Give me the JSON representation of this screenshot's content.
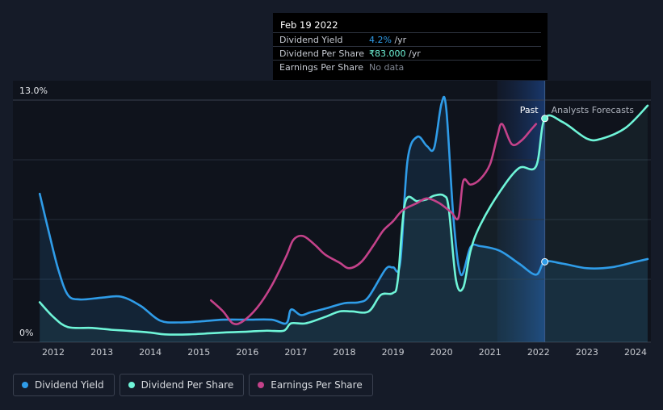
{
  "tooltip": {
    "date": "Feb 19 2022",
    "rows": [
      {
        "label": "Dividend Yield",
        "value": "4.2%",
        "unit": " /yr",
        "color": "#2f9ce8"
      },
      {
        "label": "Dividend Per Share",
        "value": "₹83.000",
        "unit": " /yr",
        "color": "#6ff5d8"
      },
      {
        "label": "Earnings Per Share",
        "value": "No data",
        "unit": "",
        "color": "#7f8591"
      }
    ]
  },
  "legend": [
    {
      "label": "Dividend Yield",
      "color": "#2f9ce8"
    },
    {
      "label": "Dividend Per Share",
      "color": "#6ff5d8"
    },
    {
      "label": "Earnings Per Share",
      "color": "#c4428a"
    }
  ],
  "chart_data": {
    "type": "line",
    "y_axis_labels": [
      "13.0%",
      "0%"
    ],
    "ylim": [
      0,
      13
    ],
    "xlim": [
      2011.7,
      2024.3
    ],
    "x_tick_labels": [
      "2012",
      "2013",
      "2014",
      "2015",
      "2016",
      "2017",
      "2018",
      "2019",
      "2020",
      "2021",
      "2022",
      "2023",
      "2024"
    ],
    "past_label": "Past",
    "forecast_label": "Analysts Forecasts",
    "past_end": 2022.13,
    "forecast_band_start": 2021.15,
    "series": [
      {
        "name": "Dividend Yield",
        "color": "#2f9ce8",
        "points": [
          [
            2011.72,
            7.9
          ],
          [
            2011.9,
            5.9
          ],
          [
            2012.1,
            3.8
          ],
          [
            2012.3,
            2.4
          ],
          [
            2012.55,
            2.15
          ],
          [
            2013.0,
            2.25
          ],
          [
            2013.4,
            2.3
          ],
          [
            2013.8,
            1.8
          ],
          [
            2014.2,
            1.0
          ],
          [
            2014.6,
            0.9
          ],
          [
            2015.0,
            0.95
          ],
          [
            2015.5,
            1.05
          ],
          [
            2016.0,
            1.05
          ],
          [
            2016.5,
            1.05
          ],
          [
            2016.8,
            0.85
          ],
          [
            2016.9,
            1.6
          ],
          [
            2017.1,
            1.3
          ],
          [
            2017.3,
            1.45
          ],
          [
            2017.6,
            1.65
          ],
          [
            2018.0,
            1.95
          ],
          [
            2018.3,
            2.0
          ],
          [
            2018.5,
            2.3
          ],
          [
            2018.85,
            3.8
          ],
          [
            2019.0,
            3.9
          ],
          [
            2019.15,
            4.15
          ],
          [
            2019.3,
            9.7
          ],
          [
            2019.5,
            11.0
          ],
          [
            2019.7,
            10.5
          ],
          [
            2019.85,
            10.4
          ],
          [
            2020.0,
            12.8
          ],
          [
            2020.1,
            12.5
          ],
          [
            2020.25,
            6.5
          ],
          [
            2020.4,
            3.5
          ],
          [
            2020.6,
            5.0
          ],
          [
            2020.8,
            5.05
          ],
          [
            2021.2,
            4.8
          ],
          [
            2021.6,
            4.1
          ],
          [
            2021.95,
            3.5
          ],
          [
            2022.13,
            4.2
          ],
          [
            2022.5,
            4.1
          ],
          [
            2023.0,
            3.85
          ],
          [
            2023.5,
            3.9
          ],
          [
            2024.0,
            4.2
          ],
          [
            2024.25,
            4.35
          ]
        ]
      },
      {
        "name": "Dividend Per Share",
        "color": "#6ff5d8",
        "points": [
          [
            2011.72,
            2.0
          ],
          [
            2012.0,
            1.2
          ],
          [
            2012.3,
            0.65
          ],
          [
            2012.8,
            0.6
          ],
          [
            2013.2,
            0.5
          ],
          [
            2013.5,
            0.45
          ],
          [
            2014.0,
            0.35
          ],
          [
            2014.3,
            0.25
          ],
          [
            2014.8,
            0.25
          ],
          [
            2015.5,
            0.35
          ],
          [
            2016.0,
            0.4
          ],
          [
            2016.4,
            0.45
          ],
          [
            2016.75,
            0.45
          ],
          [
            2016.9,
            0.85
          ],
          [
            2017.2,
            0.85
          ],
          [
            2017.6,
            1.2
          ],
          [
            2017.9,
            1.5
          ],
          [
            2018.15,
            1.5
          ],
          [
            2018.5,
            1.5
          ],
          [
            2018.75,
            2.4
          ],
          [
            2019.0,
            2.5
          ],
          [
            2019.1,
            3.2
          ],
          [
            2019.25,
            7.4
          ],
          [
            2019.5,
            7.5
          ],
          [
            2019.7,
            7.6
          ],
          [
            2019.85,
            7.8
          ],
          [
            2020.05,
            7.8
          ],
          [
            2020.15,
            7.1
          ],
          [
            2020.3,
            3.2
          ],
          [
            2020.45,
            2.8
          ],
          [
            2020.6,
            4.8
          ],
          [
            2020.8,
            6.2
          ],
          [
            2021.2,
            8.0
          ],
          [
            2021.6,
            9.3
          ],
          [
            2021.95,
            9.4
          ],
          [
            2022.13,
            12.0
          ],
          [
            2022.5,
            11.8
          ],
          [
            2023.0,
            10.9
          ],
          [
            2023.3,
            10.9
          ],
          [
            2023.8,
            11.5
          ],
          [
            2024.25,
            12.7
          ]
        ]
      },
      {
        "name": "Earnings Per Share",
        "color": "#c4428a",
        "points": [
          [
            2015.25,
            2.1
          ],
          [
            2015.5,
            1.5
          ],
          [
            2015.7,
            0.85
          ],
          [
            2015.9,
            0.95
          ],
          [
            2016.2,
            1.7
          ],
          [
            2016.5,
            2.9
          ],
          [
            2016.8,
            4.5
          ],
          [
            2016.95,
            5.4
          ],
          [
            2017.15,
            5.6
          ],
          [
            2017.4,
            5.1
          ],
          [
            2017.6,
            4.6
          ],
          [
            2017.9,
            4.15
          ],
          [
            2018.1,
            3.85
          ],
          [
            2018.35,
            4.2
          ],
          [
            2018.6,
            5.1
          ],
          [
            2018.8,
            5.9
          ],
          [
            2019.0,
            6.4
          ],
          [
            2019.2,
            7.0
          ],
          [
            2019.5,
            7.4
          ],
          [
            2019.7,
            7.65
          ],
          [
            2019.95,
            7.4
          ],
          [
            2020.2,
            6.9
          ],
          [
            2020.35,
            6.6
          ],
          [
            2020.45,
            8.6
          ],
          [
            2020.6,
            8.4
          ],
          [
            2020.8,
            8.7
          ],
          [
            2021.0,
            9.5
          ],
          [
            2021.15,
            11.0
          ],
          [
            2021.25,
            11.7
          ],
          [
            2021.45,
            10.6
          ],
          [
            2021.65,
            10.8
          ],
          [
            2021.85,
            11.4
          ],
          [
            2021.95,
            11.7
          ]
        ]
      }
    ]
  }
}
